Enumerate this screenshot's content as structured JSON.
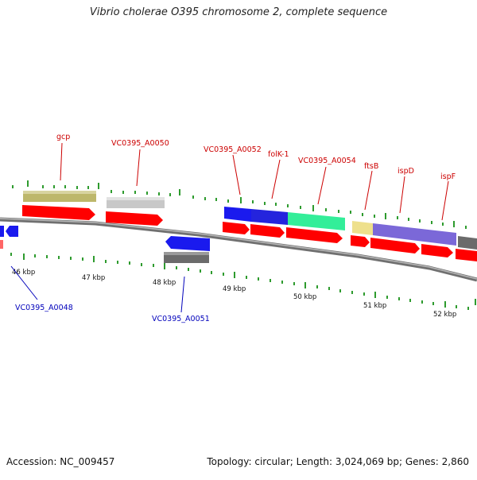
{
  "title": "Vibrio cholerae O395 chromosome 2, complete sequence",
  "accession_label": "Accession: NC_009457",
  "topology_label": "Topology: circular; Length: 3,024,069 bp; Genes: 2,860",
  "colors": {
    "forward_label": "#cc0000",
    "reverse_label": "#0000bb",
    "cds_red": "#ff0000",
    "backbone": "#808080",
    "tick": "#2e9b2e"
  },
  "tick_labels": [
    "46 kbp",
    "47 kbp",
    "48 kbp",
    "49 kbp",
    "50 kbp",
    "51 kbp",
    "52 kbp"
  ],
  "forward_genes": [
    {
      "name": "gcp",
      "color": "#bdb76b"
    },
    {
      "name": "VC0395_A0050",
      "color": "#c8c8c8"
    },
    {
      "name": "VC0395_A0052",
      "color": "#1a1aee"
    },
    {
      "name": "folK-1",
      "color": "#1a1aee"
    },
    {
      "name": "VC0395_A0054",
      "color": "#33ee99"
    },
    {
      "name": "ftsB",
      "color": "#eee08c"
    },
    {
      "name": "ispD",
      "color": "#7b68d8"
    },
    {
      "name": "ispF",
      "color": "#6b6b6b"
    }
  ],
  "reverse_genes": [
    {
      "name": "VC0395_A0048",
      "color": "#1a1aee"
    },
    {
      "name": "VC0395_A0051",
      "color": "#1a1aee"
    }
  ]
}
